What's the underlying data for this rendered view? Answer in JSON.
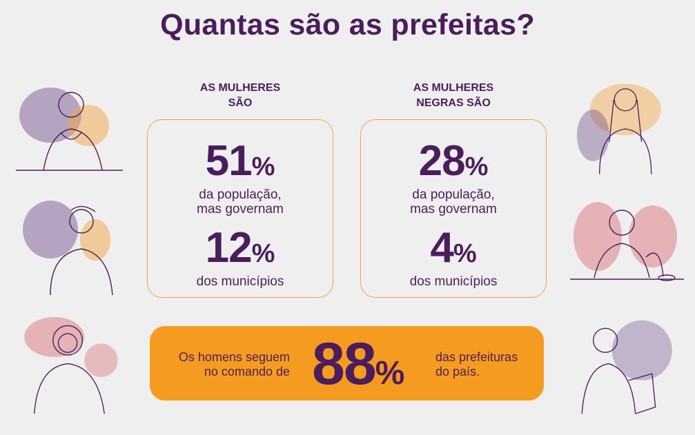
{
  "title": "Quantas são as prefeitas?",
  "cards": [
    {
      "header_line1": "AS MULHERES",
      "header_line2": "SÃO",
      "population_value": "51",
      "population_line1": "da população,",
      "population_line2": "mas governam",
      "govern_value": "12",
      "govern_text": "dos municípios",
      "pct": "%"
    },
    {
      "header_line1": "AS MULHERES",
      "header_line2": "NEGRAS SÃO",
      "population_value": "28",
      "population_line1": "da população,",
      "population_line2": "mas governam",
      "govern_value": "4",
      "govern_text": "dos municípios",
      "pct": "%"
    }
  ],
  "banner": {
    "left_line1": "Os homens seguem",
    "left_line2": "no comando de",
    "value": "88",
    "pct": "%",
    "right_line1": "das prefeituras",
    "right_line2": "do país."
  },
  "colors": {
    "purple": "#4b1d5c",
    "orange": "#f59c20",
    "background": "#f0efef"
  }
}
